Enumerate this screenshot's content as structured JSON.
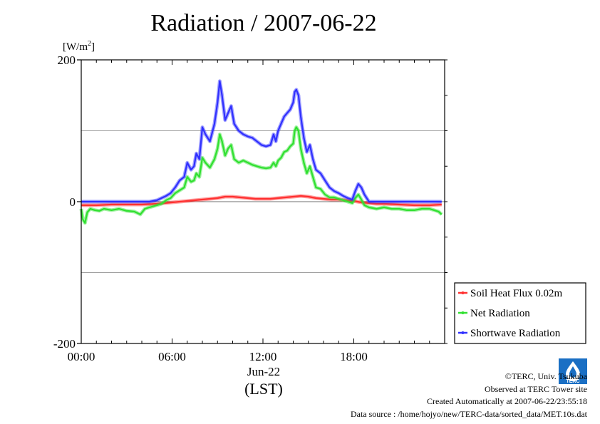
{
  "title": "Radiation / 2007-06-22",
  "unit": {
    "base": "[W/m",
    "sup": "2",
    "close": "]"
  },
  "x_date_label": "Jun-22",
  "x_zone_label": "(LST)",
  "colors": {
    "soil": "#ff3030",
    "net": "#30e030",
    "short": "#3030ff",
    "grid": "#a0a0a0"
  },
  "credits": {
    "copyright": "©TERC, Univ. Tsukuba",
    "observed": "Observed at TERC Tower site",
    "created": "Created Automatically at 2007-06-22/23:55:18",
    "source": "Data source : /home/hojyo/new/TERC-data/sorted_data/MET.10s.dat"
  },
  "logo_text": "TERC",
  "chart_data": {
    "type": "line",
    "title": "Radiation / 2007-06-22",
    "ylabel": "[W/m2]",
    "xlim": [
      0,
      24
    ],
    "ylim": [
      -200,
      200
    ],
    "y_ticks": [
      200,
      0,
      -200
    ],
    "y_tick_labels": [
      "200",
      "0",
      "-200"
    ],
    "x_ticks": [
      0,
      6,
      12,
      18
    ],
    "x_tick_labels": [
      "00:00",
      "06:00",
      "12:00",
      "18:00"
    ],
    "grid": "horizontal",
    "legend_position": "bottom-right",
    "series": [
      {
        "name": "Soil Heat Flux 0.02m",
        "color": "#ff3030",
        "x": [
          0,
          1,
          2,
          3,
          4,
          5,
          5.5,
          6,
          6.5,
          7,
          7.5,
          8,
          8.5,
          9,
          9.5,
          10,
          10.5,
          11,
          11.5,
          12,
          12.5,
          13,
          13.5,
          14,
          14.5,
          15,
          15.5,
          16,
          16.5,
          17,
          17.5,
          18,
          18.5,
          19,
          19.5,
          20,
          21,
          22,
          23,
          23.8
        ],
        "y": [
          -5,
          -5,
          -4,
          -4,
          -4,
          -3,
          -2,
          -1,
          0,
          1,
          2,
          3,
          4,
          5,
          7,
          7,
          6,
          5,
          4,
          4,
          4,
          5,
          6,
          7,
          8,
          7,
          5,
          4,
          3,
          3,
          2,
          1,
          -1,
          -2,
          -3,
          -3,
          -4,
          -5,
          -5,
          -4
        ]
      },
      {
        "name": "Net Radiation",
        "color": "#30e030",
        "x": [
          0,
          0.1,
          0.25,
          0.4,
          0.6,
          0.9,
          1.2,
          1.5,
          2.0,
          2.5,
          3.0,
          3.5,
          3.9,
          4.2,
          4.5,
          5.0,
          5.3,
          5.6,
          5.9,
          6.2,
          6.5,
          6.8,
          7.0,
          7.25,
          7.45,
          7.6,
          7.8,
          8.0,
          8.2,
          8.5,
          8.8,
          9.0,
          9.15,
          9.3,
          9.5,
          9.7,
          9.9,
          10.1,
          10.4,
          10.7,
          11.0,
          11.3,
          11.6,
          11.9,
          12.2,
          12.5,
          12.7,
          12.85,
          13.0,
          13.2,
          13.4,
          13.6,
          13.8,
          14.0,
          14.1,
          14.2,
          14.35,
          14.5,
          14.7,
          14.9,
          15.1,
          15.3,
          15.5,
          15.8,
          16.1,
          16.4,
          16.7,
          17.0,
          17.3,
          17.6,
          17.9,
          18.1,
          18.3,
          18.5,
          18.7,
          19.0,
          19.5,
          20.0,
          20.5,
          21.0,
          21.5,
          22.0,
          22.5,
          23.0,
          23.3,
          23.6,
          23.8
        ],
        "y": [
          -10,
          -25,
          -30,
          -15,
          -10,
          -12,
          -13,
          -10,
          -12,
          -10,
          -13,
          -14,
          -18,
          -10,
          -8,
          -5,
          -3,
          2,
          5,
          12,
          16,
          20,
          35,
          28,
          30,
          40,
          35,
          62,
          55,
          48,
          60,
          75,
          95,
          85,
          65,
          75,
          80,
          60,
          55,
          58,
          55,
          52,
          50,
          48,
          47,
          48,
          55,
          50,
          58,
          62,
          70,
          72,
          78,
          82,
          100,
          105,
          100,
          75,
          55,
          40,
          50,
          35,
          20,
          18,
          10,
          6,
          6,
          4,
          2,
          0,
          -2,
          5,
          10,
          3,
          -5,
          -8,
          -10,
          -8,
          -10,
          -10,
          -12,
          -12,
          -10,
          -10,
          -12,
          -14,
          -18
        ]
      },
      {
        "name": "Shortwave Radiation",
        "color": "#3030ff",
        "x": [
          0,
          0.5,
          1.0,
          1.5,
          2.0,
          2.5,
          3.0,
          3.5,
          4.0,
          4.5,
          5.0,
          5.3,
          5.6,
          5.9,
          6.2,
          6.5,
          6.8,
          7.0,
          7.25,
          7.45,
          7.6,
          7.8,
          8.0,
          8.2,
          8.5,
          8.8,
          9.0,
          9.15,
          9.3,
          9.5,
          9.7,
          9.9,
          10.1,
          10.4,
          10.7,
          11.0,
          11.3,
          11.6,
          11.9,
          12.2,
          12.5,
          12.7,
          12.85,
          13.0,
          13.2,
          13.4,
          13.6,
          13.8,
          14.0,
          14.1,
          14.2,
          14.35,
          14.5,
          14.7,
          14.9,
          15.1,
          15.3,
          15.5,
          15.8,
          16.1,
          16.4,
          16.7,
          17.0,
          17.3,
          17.6,
          17.9,
          18.1,
          18.3,
          18.5,
          18.7,
          19.0,
          19.5,
          20.0,
          21.0,
          22.0,
          23.0,
          23.8
        ],
        "y": [
          0,
          0,
          0,
          0,
          0,
          0,
          0,
          0,
          0,
          0,
          2,
          5,
          8,
          12,
          20,
          30,
          35,
          55,
          45,
          50,
          68,
          60,
          105,
          95,
          85,
          110,
          140,
          170,
          150,
          115,
          125,
          135,
          110,
          100,
          95,
          92,
          90,
          85,
          80,
          78,
          80,
          95,
          85,
          100,
          110,
          120,
          125,
          130,
          140,
          155,
          158,
          150,
          120,
          90,
          70,
          80,
          60,
          45,
          40,
          30,
          20,
          15,
          12,
          8,
          5,
          3,
          15,
          25,
          20,
          10,
          0,
          0,
          0,
          0,
          0,
          0,
          0
        ]
      }
    ]
  }
}
